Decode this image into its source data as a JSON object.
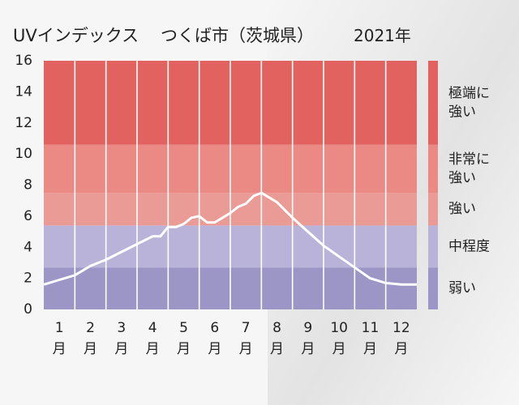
{
  "header": {
    "index_name": "UVインデックス",
    "location": "つくば市（茨城県）",
    "year": "2021年"
  },
  "chart_data": {
    "type": "line",
    "title": "UVインデックス",
    "ylim": [
      0,
      16
    ],
    "yticks": [
      "0",
      "2",
      "4",
      "6",
      "8",
      "10",
      "12",
      "14",
      "16"
    ],
    "categories": [
      {
        "num": "1",
        "unit": "月"
      },
      {
        "num": "2",
        "unit": "月"
      },
      {
        "num": "3",
        "unit": "月"
      },
      {
        "num": "4",
        "unit": "月"
      },
      {
        "num": "5",
        "unit": "月"
      },
      {
        "num": "6",
        "unit": "月"
      },
      {
        "num": "7",
        "unit": "月"
      },
      {
        "num": "8",
        "unit": "月"
      },
      {
        "num": "9",
        "unit": "月"
      },
      {
        "num": "10",
        "unit": "月"
      },
      {
        "num": "11",
        "unit": "月"
      },
      {
        "num": "12",
        "unit": "月"
      }
    ],
    "x": [
      0.5,
      1.0,
      1.5,
      2.0,
      2.5,
      3.0,
      3.5,
      4.0,
      4.25,
      4.5,
      4.75,
      5.0,
      5.25,
      5.5,
      5.75,
      6.0,
      6.25,
      6.5,
      6.75,
      7.0,
      7.25,
      7.5,
      7.75,
      8.0,
      8.5,
      9.0,
      9.5,
      10.0,
      10.5,
      11.0,
      11.5,
      12.0,
      12.5
    ],
    "y": [
      1.6,
      1.9,
      2.2,
      2.8,
      3.2,
      3.7,
      4.2,
      4.7,
      4.7,
      5.3,
      5.3,
      5.5,
      5.9,
      6.0,
      5.6,
      5.6,
      5.9,
      6.2,
      6.6,
      6.8,
      7.3,
      7.5,
      7.2,
      6.9,
      5.9,
      5.0,
      4.1,
      3.4,
      2.7,
      2.0,
      1.7,
      1.6,
      1.6
    ],
    "bands": [
      {
        "from": 0,
        "to": 2.7,
        "color": "#9c96c6",
        "label": [
          "弱い"
        ]
      },
      {
        "from": 2.7,
        "to": 5.4,
        "color": "#b9b3d9",
        "label": [
          "中程度"
        ]
      },
      {
        "from": 5.4,
        "to": 7.5,
        "color": "#eb9b96",
        "label": [
          "強い"
        ]
      },
      {
        "from": 7.5,
        "to": 10.6,
        "color": "#eb8a84",
        "label": [
          "非常に",
          "強い"
        ]
      },
      {
        "from": 10.6,
        "to": 16,
        "color": "#e2625f",
        "label": [
          "極端に",
          "強い"
        ]
      }
    ],
    "line_color": "#ffffff",
    "grid": true
  }
}
